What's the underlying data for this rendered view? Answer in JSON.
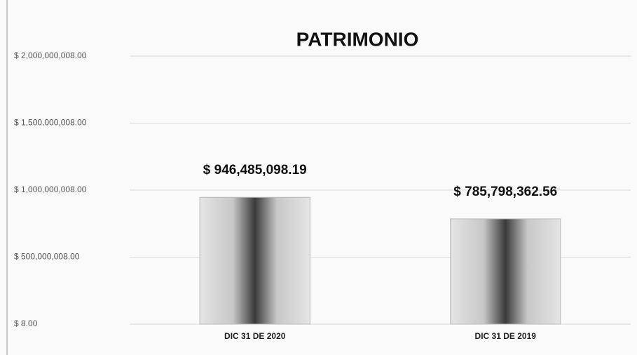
{
  "chart_data": {
    "type": "bar",
    "title": "PATRIMONIO",
    "categories": [
      "DIC 31 DE 2020",
      "DIC 31 DE 2019"
    ],
    "values": [
      946485098.19,
      785798362.56
    ],
    "value_labels": [
      "$ 946,485,098.19",
      "$ 785,798,362.56"
    ],
    "ylim": [
      8,
      2000000008
    ],
    "yticks": [
      {
        "value": 8,
        "label": "$ 8.00"
      },
      {
        "value": 500000008,
        "label": "$ 500,000,008.00"
      },
      {
        "value": 1000000008,
        "label": "$ 1,000,000,008.00"
      },
      {
        "value": 1500000008,
        "label": "$ 1,500,000,008.00"
      },
      {
        "value": 2000000008,
        "label": "$ 2,000,000,008.00"
      }
    ],
    "grid": true
  }
}
